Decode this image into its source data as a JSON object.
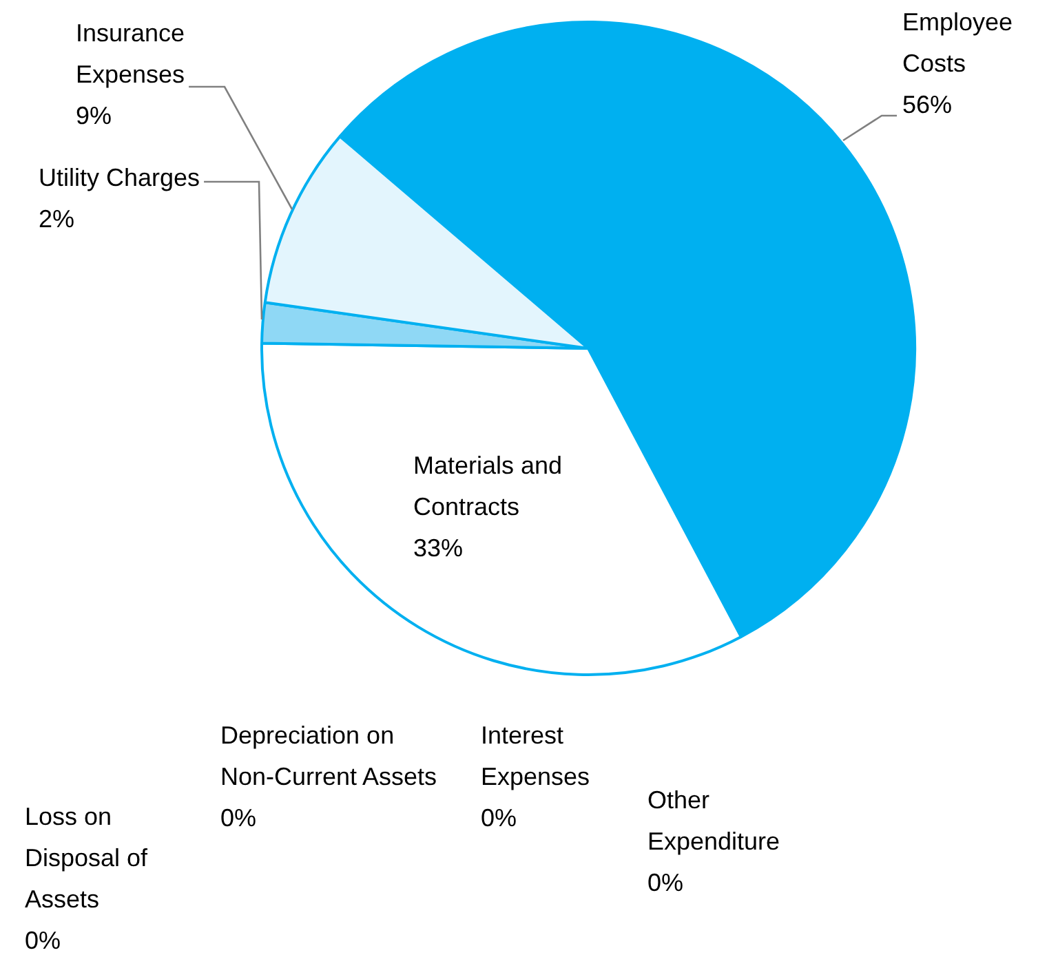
{
  "chart_data": {
    "type": "pie",
    "categories": [
      "Employee Costs",
      "Materials and Contracts",
      "Utility Charges",
      "Insurance Expenses",
      "Loss on Disposal of Assets",
      "Depreciation on Non-Current Assets",
      "Interest Expenses",
      "Other Expenditure"
    ],
    "values": [
      56,
      33,
      2,
      9,
      0,
      0,
      0,
      0
    ],
    "value_labels": [
      "56%",
      "33%",
      "2%",
      "9%",
      "0%",
      "0%",
      "0%",
      "0%"
    ],
    "colors": [
      "#00b0f0",
      "#ffffff",
      "#8fd8f5",
      "#e3f5fd",
      "#ffffff",
      "#ffffff",
      "#ffffff",
      "#ffffff"
    ],
    "legend": false
  }
}
